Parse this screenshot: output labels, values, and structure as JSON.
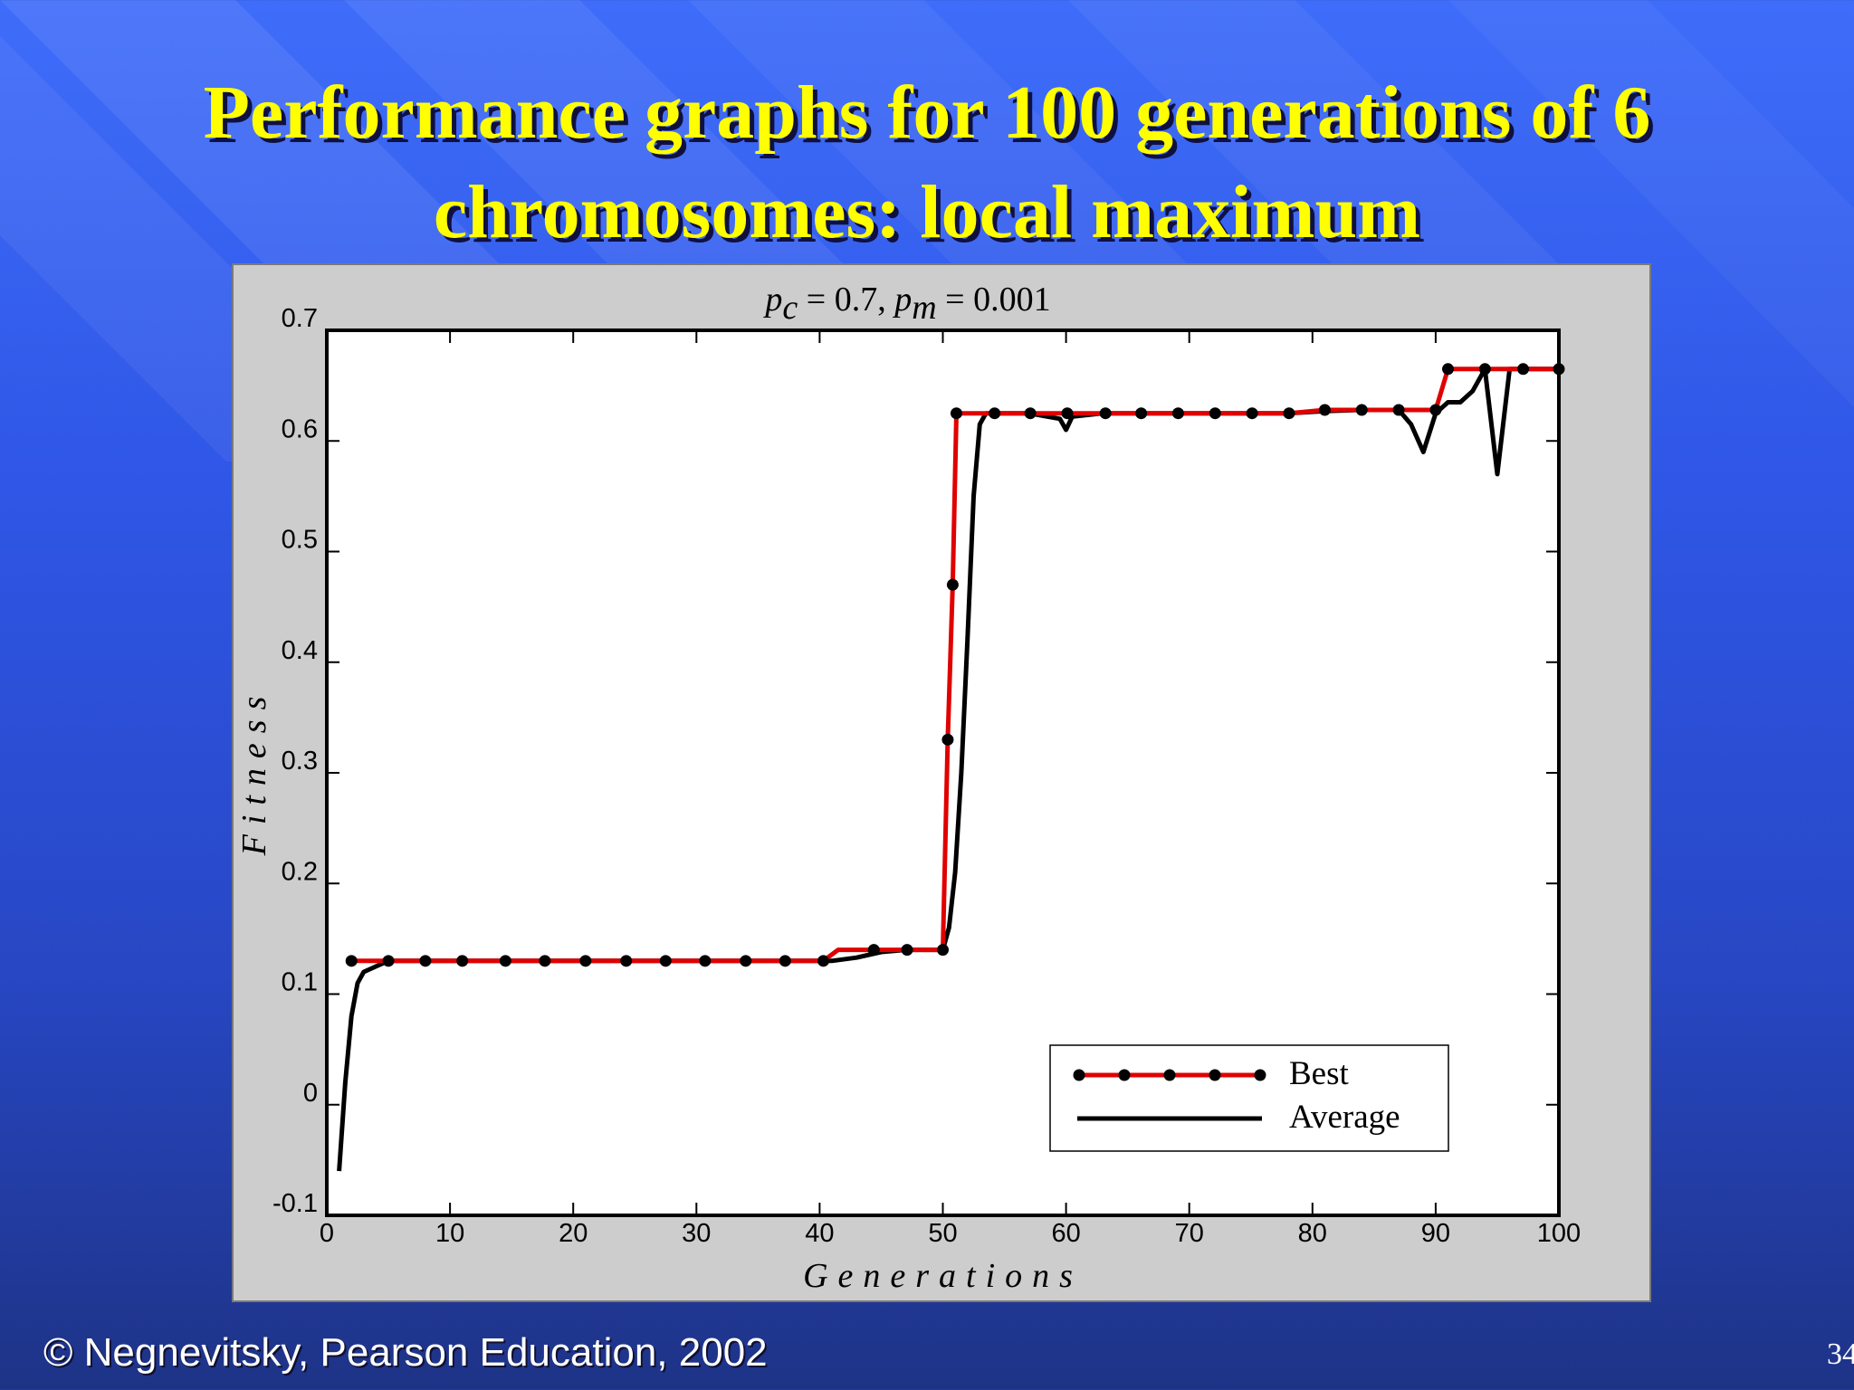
{
  "slide": {
    "title_line1": "Performance graphs for 100 generations of 6",
    "title_line2": "chromosomes: local maximum",
    "footer_symbol": "©",
    "footer_text": "Negnevitsky, Pearson Education, 2002",
    "page_number": "34"
  },
  "colors": {
    "best": "#e00000",
    "average": "#000000",
    "title": "#ffff00"
  },
  "chart_data": {
    "type": "line",
    "title_parts": {
      "pc_symbol": "p",
      "pc_sub": "c",
      "pc_value": "= 0.7,",
      "pm_symbol": "p",
      "pm_sub": "m",
      "pm_value": "= 0.001"
    },
    "xlabel": "Generations",
    "ylabel": "Fitness",
    "xlim": [
      0,
      100
    ],
    "ylim": [
      -0.1,
      0.7
    ],
    "x_ticks": [
      "0",
      "10",
      "20",
      "30",
      "40",
      "50",
      "60",
      "70",
      "80",
      "90",
      "100"
    ],
    "y_ticks": [
      "-0.1",
      "0",
      "0.1",
      "0.2",
      "0.3",
      "0.4",
      "0.5",
      "0.6",
      "0.7"
    ],
    "legend_position": "bottom-right",
    "grid": false,
    "series": [
      {
        "name": "Best",
        "x": [
          2,
          5,
          8,
          11,
          14.5,
          17.7,
          21,
          24.3,
          27.5,
          30.7,
          34,
          37.2,
          40.3,
          41.5,
          44.4,
          47.1,
          50,
          50.4,
          50.8,
          51.1,
          54.2,
          57.1,
          60.1,
          63.2,
          66.1,
          69.1,
          72.1,
          75.1,
          78.1,
          81,
          84,
          87,
          90,
          91,
          94,
          97.1,
          100
        ],
        "y": [
          0.13,
          0.13,
          0.13,
          0.13,
          0.13,
          0.13,
          0.13,
          0.13,
          0.13,
          0.13,
          0.13,
          0.13,
          0.13,
          0.14,
          0.14,
          0.14,
          0.14,
          0.33,
          0.47,
          0.625,
          0.625,
          0.625,
          0.625,
          0.625,
          0.625,
          0.625,
          0.625,
          0.625,
          0.625,
          0.628,
          0.628,
          0.628,
          0.628,
          0.665,
          0.665,
          0.665,
          0.665
        ],
        "markers_at_x": [
          2,
          5,
          8,
          11,
          14.5,
          17.7,
          21,
          24.3,
          27.5,
          30.7,
          34,
          37.2,
          40.3,
          44.4,
          47.1,
          50,
          50.4,
          50.8,
          51.1,
          54.2,
          57.1,
          60.1,
          63.2,
          66.1,
          69.1,
          72.1,
          75.1,
          78.1,
          81,
          84,
          87,
          90,
          91,
          94,
          97.1,
          100
        ]
      },
      {
        "name": "Average",
        "x": [
          1,
          1.5,
          2,
          2.5,
          3,
          4,
          5,
          6,
          10,
          20,
          30,
          40,
          41,
          43,
          45,
          47,
          50,
          50.5,
          51,
          51.5,
          52,
          52.5,
          53,
          53.5,
          54,
          57,
          59.5,
          60,
          60.5,
          63,
          66,
          69,
          72,
          75,
          78,
          81,
          84,
          87,
          88,
          89,
          90,
          91,
          92,
          93,
          94,
          95,
          96,
          97,
          100
        ],
        "y": [
          -0.06,
          0.02,
          0.08,
          0.11,
          0.12,
          0.125,
          0.13,
          0.13,
          0.13,
          0.13,
          0.13,
          0.13,
          0.13,
          0.133,
          0.138,
          0.14,
          0.14,
          0.16,
          0.21,
          0.3,
          0.42,
          0.55,
          0.615,
          0.625,
          0.625,
          0.625,
          0.62,
          0.61,
          0.622,
          0.625,
          0.625,
          0.625,
          0.625,
          0.625,
          0.625,
          0.627,
          0.628,
          0.628,
          0.615,
          0.59,
          0.625,
          0.635,
          0.635,
          0.645,
          0.665,
          0.57,
          0.665,
          0.665,
          0.665
        ]
      }
    ]
  }
}
